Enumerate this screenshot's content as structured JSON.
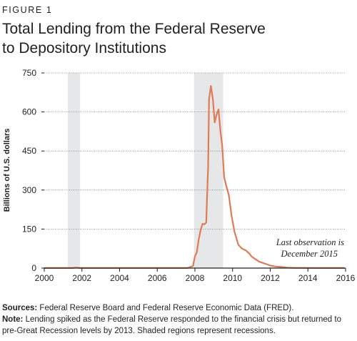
{
  "figure_label": "FIGURE 1",
  "title_line1": "Total Lending from the Federal Reserve",
  "title_line2": "to Depository Institutions",
  "sources_label": "Sources:",
  "sources_text": " Federal Reserve Board and Federal Reserve Economic Data (FRED).",
  "note_label": "Note:",
  "note_text": " Lending spiked as the Federal Reserve responded to the financial crisis but returned to pre-Great Recession levels by 2013. Shaded regions represent recessions.",
  "colors": {
    "line": "#e07b53",
    "recession": "#e6e7e8",
    "text": "#231f20"
  },
  "chart_data": {
    "type": "line",
    "ylabel": "Billions of U.S. dollars",
    "xlim": [
      2000,
      2016
    ],
    "ylim": [
      0,
      750
    ],
    "xticks": [
      "2000",
      "2002",
      "2004",
      "2006",
      "2008",
      "2010",
      "2012",
      "2014",
      "2016"
    ],
    "yticks": [
      "0",
      "150",
      "300",
      "450",
      "600",
      "750"
    ],
    "recessions": [
      [
        2001.25,
        2001.9
      ],
      [
        2007.95,
        2009.5
      ]
    ],
    "annotation": [
      "Last observation is",
      "December 2015"
    ],
    "series": [
      {
        "x": [
          2000,
          2001.5,
          2001.7,
          2001.9,
          2007.6,
          2007.9,
          2008.0,
          2008.1,
          2008.2,
          2008.3,
          2008.4,
          2008.5,
          2008.6,
          2008.7,
          2008.75,
          2008.85,
          2008.95,
          2009.05,
          2009.15,
          2009.25,
          2009.35,
          2009.45,
          2009.55,
          2009.65,
          2009.8,
          2009.95,
          2010.1,
          2010.3,
          2010.5,
          2010.7,
          2010.9,
          2011.0,
          2011.2,
          2011.4,
          2011.6,
          2011.8,
          2012.0,
          2012.3,
          2012.6,
          2012.9,
          2013.2,
          2014,
          2015,
          2015.92
        ],
        "y": [
          0.3,
          0.3,
          2,
          0.3,
          0.3,
          8,
          45,
          60,
          110,
          145,
          170,
          168,
          175,
          390,
          650,
          700,
          650,
          560,
          590,
          610,
          530,
          470,
          350,
          320,
          280,
          200,
          140,
          90,
          75,
          68,
          55,
          45,
          35,
          25,
          20,
          15,
          10,
          6,
          4,
          2,
          1,
          0.5,
          0.3,
          0.3
        ]
      }
    ]
  }
}
